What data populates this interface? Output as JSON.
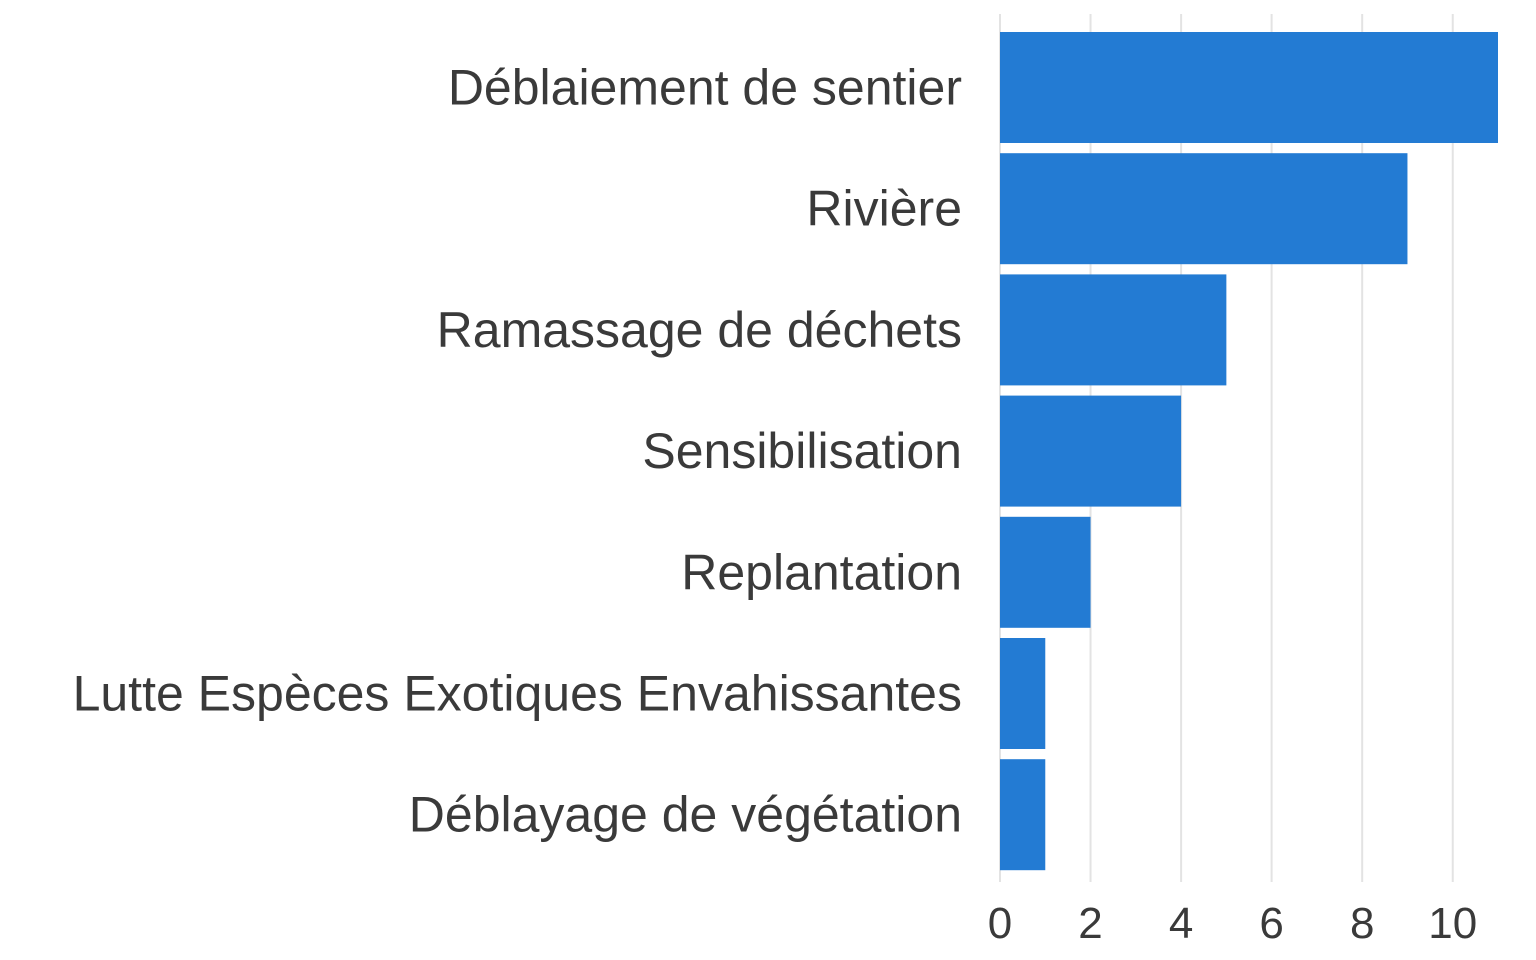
{
  "chart_data": {
    "type": "bar",
    "orientation": "horizontal",
    "categories": [
      "Déblaiement de sentier",
      "Rivière",
      "Ramassage de déchets",
      "Sensibilisation",
      "Replantation",
      "Lutte Espèces Exotiques Envahissantes",
      "Déblayage de végétation"
    ],
    "values": [
      11,
      9,
      5,
      4,
      2,
      1,
      1
    ],
    "xticks": [
      0,
      2,
      4,
      6,
      8,
      10
    ],
    "xlim": [
      0,
      11
    ],
    "grid": "vertical",
    "bar_color": "#237bd3",
    "legend": "none"
  }
}
